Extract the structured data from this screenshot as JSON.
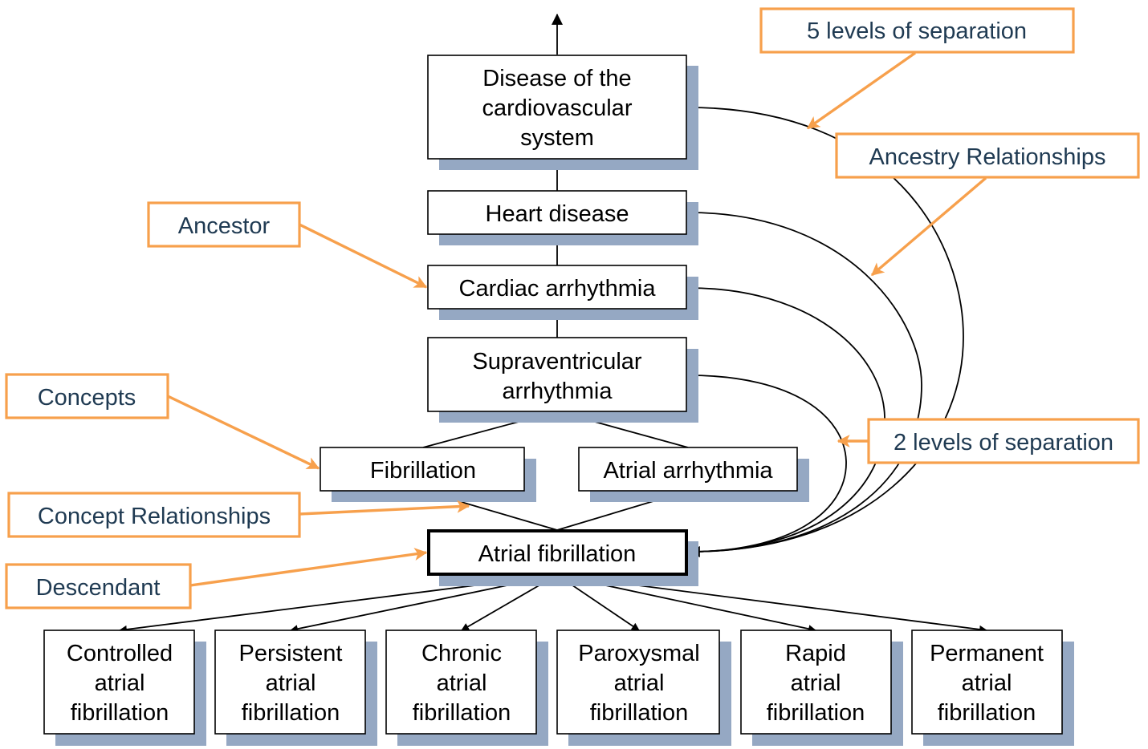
{
  "concepts": {
    "disease_cardiovascular": [
      "Disease of the",
      "cardiovascular",
      "system"
    ],
    "heart_disease": [
      "Heart disease"
    ],
    "cardiac_arrhythmia": [
      "Cardiac arrhythmia"
    ],
    "supraventricular_arrhythmia": [
      "Supraventricular",
      "arrhythmia"
    ],
    "fibrillation": [
      "Fibrillation"
    ],
    "atrial_arrhythmia": [
      "Atrial arrhythmia"
    ],
    "atrial_fibrillation": [
      "Atrial fibrillation"
    ],
    "controlled_af": [
      "Controlled",
      "atrial",
      "fibrillation"
    ],
    "persistent_af": [
      "Persistent",
      "atrial",
      "fibrillation"
    ],
    "chronic_af": [
      "Chronic",
      "atrial",
      "fibrillation"
    ],
    "paroxysmal_af": [
      "Paroxysmal",
      "atrial",
      "fibrillation"
    ],
    "rapid_af": [
      "Rapid",
      "atrial",
      "fibrillation"
    ],
    "permanent_af": [
      "Permanent",
      "atrial",
      "fibrillation"
    ]
  },
  "callouts": {
    "five_levels": "5 levels of separation",
    "ancestry_relationships": "Ancestry Relationships",
    "ancestor": "Ancestor",
    "concepts": "Concepts",
    "two_levels": "2 levels of separation",
    "concept_relationships": "Concept Relationships",
    "descendant": "Descendant"
  },
  "colors": {
    "callout_border": "#f7a04c",
    "callout_text": "#1f3a52",
    "shadow": "#95a8c3"
  }
}
